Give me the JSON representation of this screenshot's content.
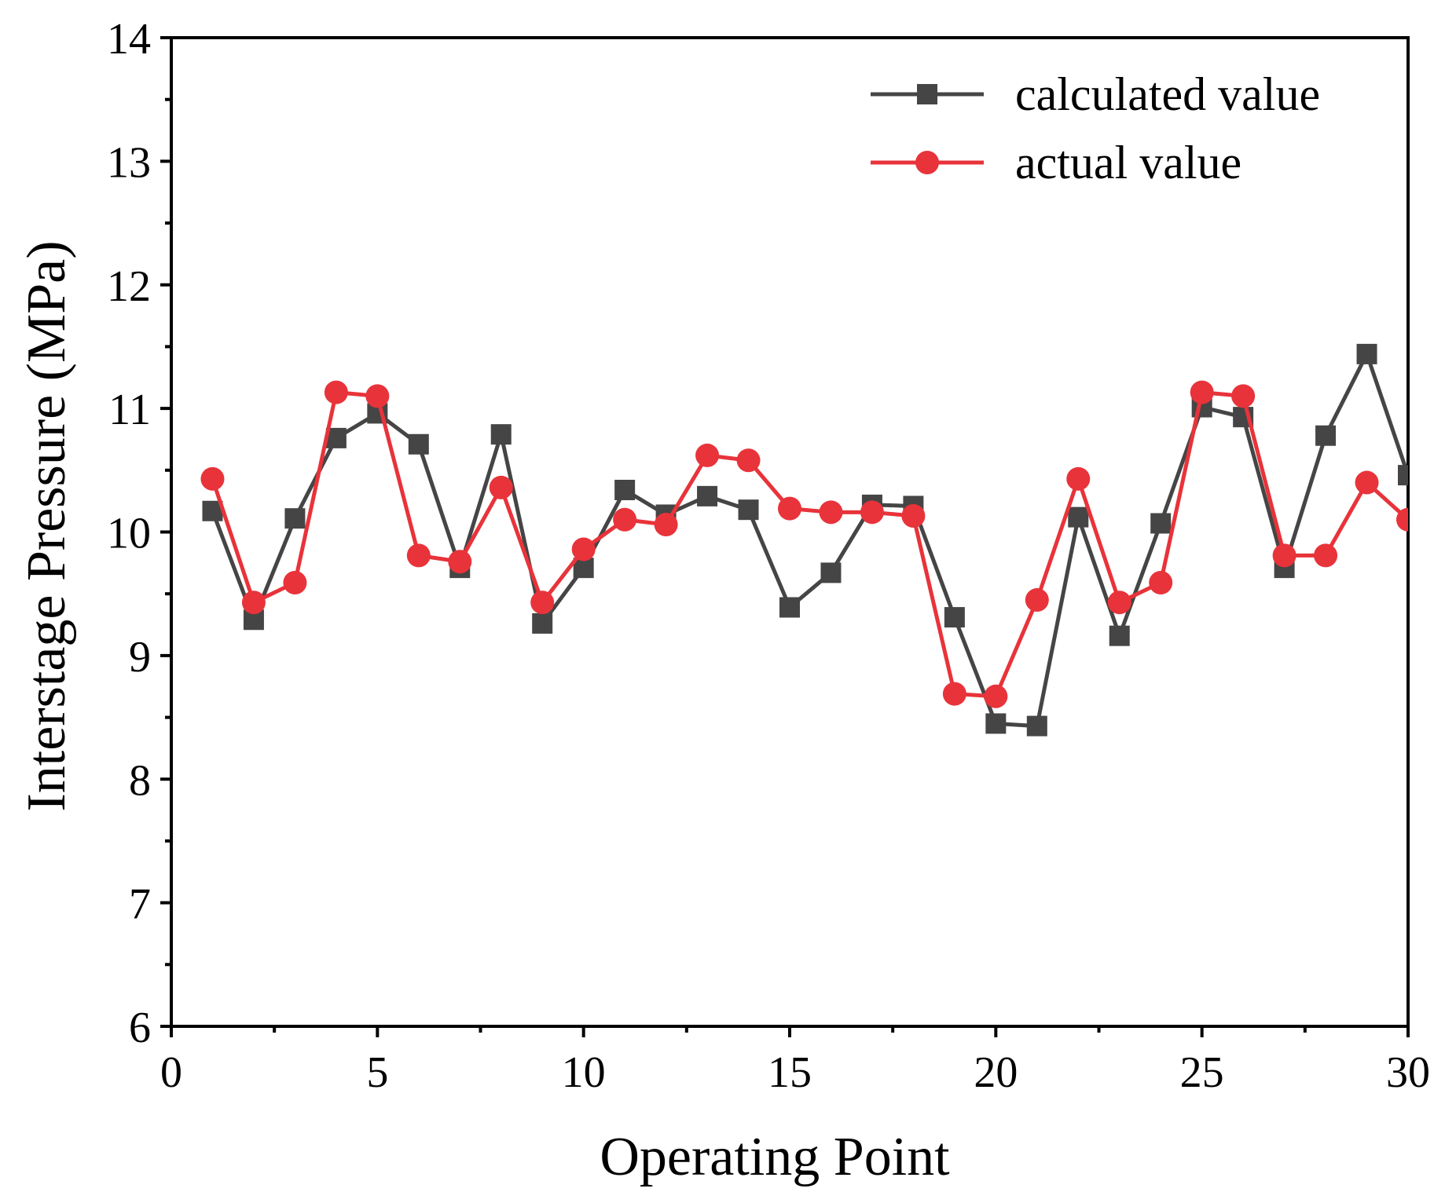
{
  "chart_data": {
    "type": "line",
    "title": "",
    "xlabel": "Operating Point",
    "ylabel": "Interstage Pressure (MPa)",
    "xlim": [
      0,
      30
    ],
    "ylim": [
      6,
      14
    ],
    "xticks": [
      0,
      5,
      10,
      15,
      20,
      25,
      30
    ],
    "yticks": [
      6,
      7,
      8,
      9,
      10,
      11,
      12,
      13,
      14
    ],
    "grid": false,
    "legend_position": "top-right",
    "x": [
      1,
      2,
      3,
      4,
      5,
      6,
      7,
      8,
      9,
      10,
      11,
      12,
      13,
      14,
      15,
      16,
      17,
      18,
      19,
      20,
      21,
      22,
      23,
      24,
      25,
      26,
      27,
      28,
      29,
      30
    ],
    "series": [
      {
        "name": "calculated value",
        "color": "#454545",
        "marker": "square",
        "values": [
          10.17,
          9.29,
          10.11,
          10.76,
          10.96,
          10.71,
          9.71,
          10.79,
          9.26,
          9.71,
          10.34,
          10.14,
          10.29,
          10.18,
          9.39,
          9.67,
          10.22,
          10.21,
          9.31,
          8.45,
          8.43,
          10.12,
          9.16,
          10.07,
          11.01,
          10.93,
          9.71,
          10.78,
          11.44,
          10.46
        ]
      },
      {
        "name": "actual value",
        "color": "#e8333a",
        "marker": "circle",
        "values": [
          10.43,
          9.43,
          9.59,
          11.13,
          11.1,
          9.81,
          9.76,
          10.36,
          9.43,
          9.86,
          10.1,
          10.06,
          10.62,
          10.58,
          10.19,
          10.16,
          10.16,
          10.13,
          8.69,
          8.67,
          9.45,
          10.43,
          9.43,
          9.59,
          11.13,
          11.1,
          9.81,
          9.81,
          10.4,
          10.1
        ]
      }
    ]
  }
}
